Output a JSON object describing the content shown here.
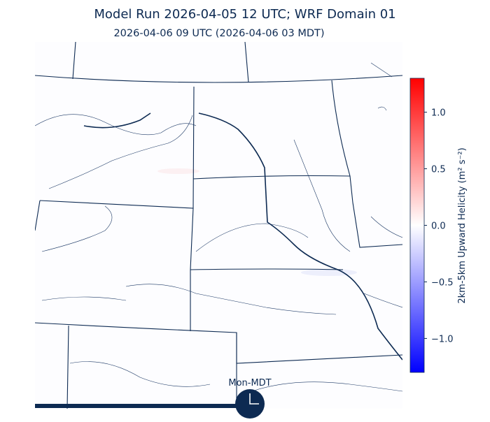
{
  "title": "Model Run 2026-04-05 12 UTC; WRF Domain 01",
  "subtitle": "2026-04-06 09 UTC  (2026-04-06 03 MDT)",
  "colorbar": {
    "label": "2km-5km Upward Helicity (m² s⁻²)",
    "lim": [
      -1.3,
      1.3
    ],
    "colors": [
      "#0000ff",
      "#ffffff",
      "#ff0000"
    ],
    "ticks": [
      {
        "value": 1.0,
        "label": "1.0"
      },
      {
        "value": 0.5,
        "label": "0.5"
      },
      {
        "value": 0.0,
        "label": "0.0"
      },
      {
        "value": -0.5,
        "label": "−0.5"
      },
      {
        "value": -1.0,
        "label": "−1.0"
      }
    ]
  },
  "timeline": {
    "label": "Mon-MDT"
  }
}
